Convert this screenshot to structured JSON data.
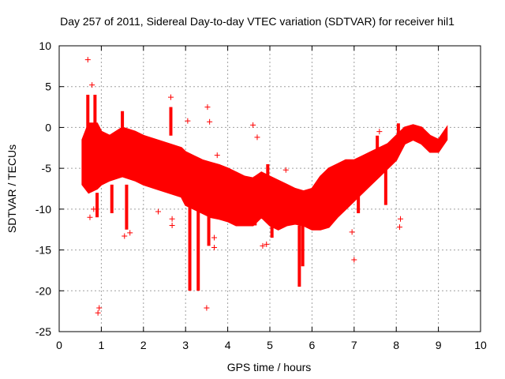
{
  "chart_data": {
    "type": "scatter",
    "title": "Day 257 of 2011, Sidereal Day-to-day VTEC variation (SDTVAR) for receiver hil1",
    "xlabel": "GPS time / hours",
    "ylabel": "SDTVAR / TECUs",
    "xlim": [
      0,
      10
    ],
    "ylim": [
      -25,
      10
    ],
    "xticks": [
      0,
      1,
      2,
      3,
      4,
      5,
      6,
      7,
      8,
      9,
      10
    ],
    "yticks": [
      -25,
      -20,
      -15,
      -10,
      -5,
      0,
      5,
      10
    ],
    "grid": true,
    "marker": "+",
    "color": "#ff0000",
    "band": {
      "description": "dense cloud of points: lower and upper envelope in data units",
      "x": [
        0.55,
        0.7,
        0.9,
        1.0,
        1.2,
        1.5,
        1.8,
        2.0,
        2.3,
        2.6,
        2.9,
        3.0,
        3.2,
        3.4,
        3.6,
        3.8,
        4.0,
        4.2,
        4.4,
        4.6,
        4.8,
        5.0,
        5.2,
        5.4,
        5.6,
        5.8,
        6.0,
        6.2,
        6.4,
        6.6,
        6.8,
        7.0,
        7.2,
        7.4,
        7.6,
        7.8,
        8.0,
        8.2,
        8.4,
        8.6,
        8.8,
        9.0,
        9.2
      ],
      "upper": [
        -1.5,
        0.5,
        0.5,
        -0.5,
        -1.0,
        0.0,
        -0.5,
        -1.0,
        -1.5,
        -2.0,
        -2.5,
        -3.0,
        -3.5,
        -4.0,
        -4.3,
        -4.6,
        -5.0,
        -5.5,
        -6.0,
        -6.2,
        -5.5,
        -6.0,
        -6.5,
        -7.0,
        -7.5,
        -7.8,
        -7.5,
        -6.0,
        -5.0,
        -4.5,
        -4.0,
        -4.0,
        -3.5,
        -3.0,
        -2.5,
        -2.0,
        -1.0,
        0.0,
        0.3,
        0.0,
        -1.0,
        -1.5,
        0.0
      ],
      "lower": [
        -7.0,
        -8.0,
        -7.5,
        -7.0,
        -6.5,
        -6.0,
        -6.5,
        -7.0,
        -7.5,
        -8.0,
        -8.5,
        -9.5,
        -10.0,
        -10.5,
        -11.0,
        -11.2,
        -11.5,
        -12.0,
        -12.0,
        -12.0,
        -11.0,
        -12.0,
        -12.5,
        -12.0,
        -11.8,
        -12.0,
        -12.5,
        -12.5,
        -12.2,
        -11.0,
        -10.0,
        -9.0,
        -8.0,
        -7.0,
        -6.0,
        -5.0,
        -4.0,
        -2.0,
        -1.5,
        -2.0,
        -3.0,
        -3.0,
        -1.5
      ]
    },
    "spikes": [
      {
        "x": 0.68,
        "from": -2,
        "to": 4.0
      },
      {
        "x": 0.85,
        "from": -2,
        "to": 4.0
      },
      {
        "x": 0.9,
        "from": -8,
        "to": -11.0
      },
      {
        "x": 1.25,
        "from": -7,
        "to": -10.5
      },
      {
        "x": 1.5,
        "from": -1,
        "to": 2.0
      },
      {
        "x": 1.6,
        "from": -7,
        "to": -12.5
      },
      {
        "x": 2.65,
        "from": -1,
        "to": 2.5
      },
      {
        "x": 3.1,
        "from": -9,
        "to": -20.0
      },
      {
        "x": 3.3,
        "from": -9,
        "to": -20.0
      },
      {
        "x": 3.55,
        "from": -9,
        "to": -14.5
      },
      {
        "x": 4.65,
        "from": -6,
        "to": -12.0
      },
      {
        "x": 4.95,
        "from": -6,
        "to": -4.5
      },
      {
        "x": 5.05,
        "from": -10,
        "to": -13.5
      },
      {
        "x": 5.7,
        "from": -12,
        "to": -19.5
      },
      {
        "x": 5.78,
        "from": -12,
        "to": -17.0
      },
      {
        "x": 7.1,
        "from": -7,
        "to": -10.5
      },
      {
        "x": 7.55,
        "from": -5,
        "to": -1.0
      },
      {
        "x": 7.75,
        "from": -5,
        "to": -9.5
      },
      {
        "x": 8.05,
        "from": -2,
        "to": 0.5
      }
    ],
    "outliers": [
      {
        "x": 0.68,
        "y": 8.3
      },
      {
        "x": 0.78,
        "y": 5.2
      },
      {
        "x": 0.95,
        "y": -22.1
      },
      {
        "x": 0.92,
        "y": -22.7
      },
      {
        "x": 0.73,
        "y": -11.0
      },
      {
        "x": 0.82,
        "y": -10.0
      },
      {
        "x": 1.55,
        "y": -13.3
      },
      {
        "x": 1.68,
        "y": -12.9
      },
      {
        "x": 2.65,
        "y": 3.7
      },
      {
        "x": 2.68,
        "y": -11.2
      },
      {
        "x": 2.68,
        "y": -12.0
      },
      {
        "x": 2.35,
        "y": -10.3
      },
      {
        "x": 3.05,
        "y": 0.8
      },
      {
        "x": 3.52,
        "y": 2.5
      },
      {
        "x": 3.57,
        "y": 0.7
      },
      {
        "x": 3.5,
        "y": -22.1
      },
      {
        "x": 3.68,
        "y": -13.5
      },
      {
        "x": 3.68,
        "y": -14.7
      },
      {
        "x": 3.75,
        "y": -3.4
      },
      {
        "x": 4.6,
        "y": 0.3
      },
      {
        "x": 4.7,
        "y": -1.2
      },
      {
        "x": 4.83,
        "y": -14.5
      },
      {
        "x": 4.92,
        "y": -14.3
      },
      {
        "x": 5.38,
        "y": -5.2
      },
      {
        "x": 6.95,
        "y": -12.8
      },
      {
        "x": 7.0,
        "y": -16.2
      },
      {
        "x": 7.6,
        "y": -0.5
      },
      {
        "x": 8.1,
        "y": -11.2
      },
      {
        "x": 8.08,
        "y": -12.2
      },
      {
        "x": 7.9,
        "y": -2.5
      }
    ]
  }
}
